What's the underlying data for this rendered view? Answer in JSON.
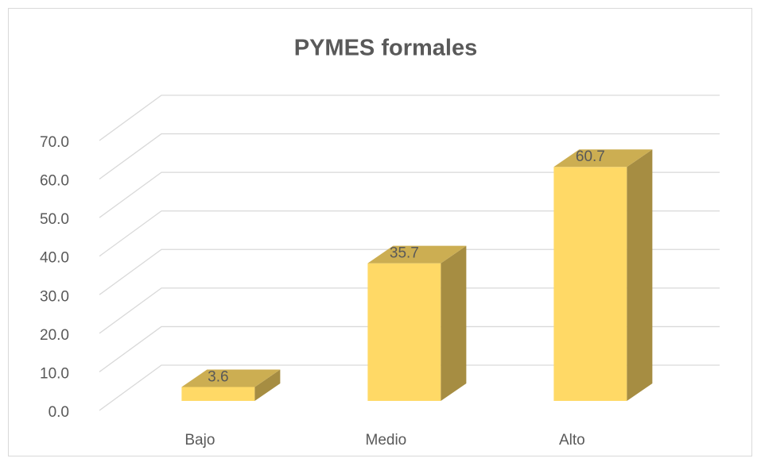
{
  "chart_data": {
    "type": "bar3d",
    "title": "PYMES formales",
    "categories": [
      "Bajo",
      "Medio",
      "Alto"
    ],
    "values": [
      3.6,
      35.7,
      60.7
    ],
    "color": "#ffd966",
    "ylim": [
      0,
      70
    ],
    "yticks": [
      {
        "value": 0,
        "label": "0.0"
      },
      {
        "value": 10,
        "label": "10.0"
      },
      {
        "value": 20,
        "label": "20.0"
      },
      {
        "value": 30,
        "label": "30.0"
      },
      {
        "value": 40,
        "label": "40.0"
      },
      {
        "value": 50,
        "label": "50.0"
      },
      {
        "value": 60,
        "label": "60.0"
      },
      {
        "value": 70,
        "label": "70.0"
      }
    ],
    "grid": true
  }
}
